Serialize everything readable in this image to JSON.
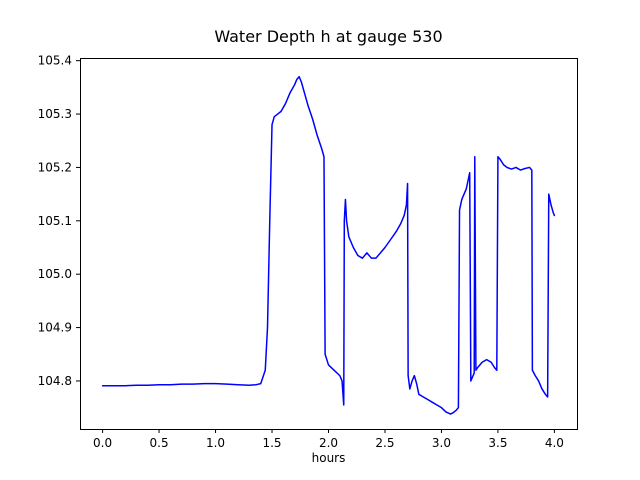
{
  "colors": {
    "line": "#0000ff",
    "axes": "#000000",
    "text": "#000000",
    "background": "#ffffff"
  },
  "chart_data": {
    "type": "line",
    "title": "Water Depth h at gauge 530",
    "xlabel": "hours",
    "ylabel": "",
    "xlim": [
      -0.2,
      4.2
    ],
    "ylim": [
      104.71,
      105.405
    ],
    "grid": false,
    "legend": "none",
    "x_ticks": [
      0.0,
      0.5,
      1.0,
      1.5,
      2.0,
      2.5,
      3.0,
      3.5,
      4.0
    ],
    "x_tick_labels": [
      "0.0",
      "0.5",
      "1.0",
      "1.5",
      "2.0",
      "2.5",
      "3.0",
      "3.5",
      "4.0"
    ],
    "y_ticks": [
      104.8,
      104.9,
      105.0,
      105.1,
      105.2,
      105.3,
      105.4
    ],
    "y_tick_labels": [
      "104.8",
      "104.9",
      "105.0",
      "105.1",
      "105.2",
      "105.3",
      "105.4"
    ],
    "series": [
      {
        "name": "Water depth h",
        "x": [
          0.0,
          0.1,
          0.2,
          0.3,
          0.4,
          0.5,
          0.6,
          0.7,
          0.8,
          0.9,
          1.0,
          1.1,
          1.2,
          1.3,
          1.36,
          1.4,
          1.44,
          1.46,
          1.48,
          1.5,
          1.52,
          1.55,
          1.58,
          1.62,
          1.66,
          1.7,
          1.72,
          1.74,
          1.76,
          1.78,
          1.82,
          1.86,
          1.9,
          1.94,
          1.96,
          1.97,
          2.0,
          2.05,
          2.1,
          2.12,
          2.135,
          2.14,
          2.15,
          2.16,
          2.18,
          2.22,
          2.26,
          2.3,
          2.34,
          2.38,
          2.42,
          2.46,
          2.5,
          2.55,
          2.6,
          2.64,
          2.67,
          2.69,
          2.7,
          2.705,
          2.72,
          2.74,
          2.76,
          2.78,
          2.8,
          2.84,
          2.88,
          2.92,
          2.96,
          3.0,
          3.04,
          3.08,
          3.1,
          3.13,
          3.15,
          3.16,
          3.18,
          3.22,
          3.25,
          3.26,
          3.28,
          3.29,
          3.295,
          3.305,
          3.32,
          3.36,
          3.4,
          3.44,
          3.47,
          3.49,
          3.5,
          3.52,
          3.55,
          3.58,
          3.62,
          3.66,
          3.7,
          3.74,
          3.78,
          3.8,
          3.805,
          3.83,
          3.86,
          3.89,
          3.92,
          3.94,
          3.95,
          3.97,
          3.99,
          4.0
        ],
        "y": [
          104.791,
          104.791,
          104.791,
          104.792,
          104.792,
          104.793,
          104.793,
          104.794,
          104.794,
          104.795,
          104.795,
          104.794,
          104.793,
          104.792,
          104.793,
          104.795,
          104.82,
          104.9,
          105.1,
          105.28,
          105.295,
          105.3,
          105.305,
          105.32,
          105.34,
          105.355,
          105.365,
          105.37,
          105.36,
          105.345,
          105.315,
          105.29,
          105.26,
          105.235,
          105.22,
          104.85,
          104.83,
          104.82,
          104.81,
          104.8,
          104.755,
          105.1,
          105.14,
          105.1,
          105.07,
          105.05,
          105.035,
          105.03,
          105.04,
          105.03,
          105.03,
          105.04,
          105.05,
          105.065,
          105.08,
          105.095,
          105.11,
          105.13,
          105.17,
          104.81,
          104.785,
          104.8,
          104.81,
          104.795,
          104.775,
          104.77,
          104.765,
          104.76,
          104.755,
          104.75,
          104.742,
          104.738,
          104.74,
          104.745,
          104.75,
          105.12,
          105.14,
          105.16,
          105.19,
          104.8,
          104.81,
          104.815,
          105.22,
          104.82,
          104.825,
          104.835,
          104.84,
          104.835,
          104.825,
          104.82,
          105.22,
          105.215,
          105.205,
          105.2,
          105.197,
          105.2,
          105.195,
          105.198,
          105.2,
          105.195,
          104.82,
          104.81,
          104.8,
          104.785,
          104.775,
          104.77,
          105.15,
          105.13,
          105.115,
          105.11
        ]
      }
    ]
  }
}
